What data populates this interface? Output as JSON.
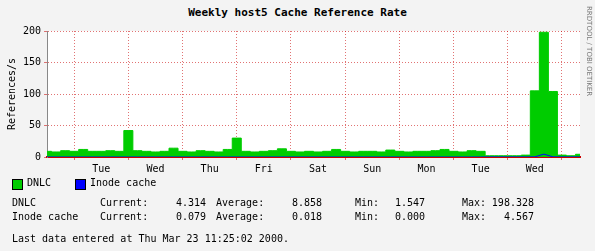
{
  "chart_data": {
    "type": "area",
    "title": "Weekly host5 Cache Reference Rate",
    "y_label": "References/s",
    "categories": [
      null,
      null,
      null,
      null,
      null,
      null,
      "Tue",
      null,
      null,
      null,
      null,
      null,
      "Wed",
      null,
      null,
      null,
      null,
      null,
      "Thu",
      null,
      null,
      null,
      null,
      null,
      "Fri",
      null,
      null,
      null,
      null,
      null,
      "Sat",
      null,
      null,
      null,
      null,
      null,
      "Sun",
      null,
      null,
      null,
      null,
      null,
      "Mon",
      null,
      null,
      null,
      null,
      null,
      "Tue",
      null,
      null,
      null,
      null,
      null,
      "Wed",
      null,
      null,
      null,
      null,
      null
    ],
    "series": [
      {
        "name": "DNLC",
        "color": "#00cc00",
        "type": "area",
        "values": [
          9,
          8,
          10,
          9,
          12,
          9,
          9,
          10,
          9,
          42,
          10,
          9,
          8,
          9,
          14,
          9,
          8,
          10,
          9,
          8,
          12,
          30,
          9,
          8,
          9,
          10,
          13,
          9,
          8,
          9,
          8,
          9,
          12,
          9,
          8,
          9,
          9,
          8,
          11,
          9,
          8,
          9,
          9,
          10,
          12,
          9,
          8,
          10,
          9,
          2,
          2,
          2,
          2,
          3,
          105,
          198,
          104,
          3,
          2,
          4.3
        ]
      },
      {
        "name": "Inode cache",
        "color": "#0000ff",
        "type": "line",
        "values": [
          0,
          0,
          0,
          0,
          0,
          0,
          0,
          0,
          0,
          0,
          0,
          0,
          0,
          0,
          0,
          0,
          0,
          0,
          0,
          0,
          0,
          0,
          0,
          0,
          0,
          0,
          0,
          0,
          0,
          0,
          0,
          0,
          0,
          0,
          0,
          0,
          0,
          0,
          0,
          0,
          0,
          0,
          0,
          0,
          0,
          0,
          0,
          0,
          0,
          0.1,
          0.1,
          0.1,
          0.1,
          0.1,
          0.2,
          4.567,
          0.2,
          0.1,
          0.1,
          0.1
        ]
      }
    ],
    "ylim": [
      0,
      200
    ],
    "yticks": [
      0,
      50,
      100,
      150,
      200
    ],
    "grid": true,
    "stats": {
      "columns": [
        "Current:",
        "Average:",
        "Min:",
        "Max:"
      ],
      "rows": [
        {
          "name": "DNLC",
          "values": [
            "4.314",
            "8.858",
            "1.547",
            "198.328"
          ]
        },
        {
          "name": "Inode cache",
          "values": [
            "0.079",
            "0.018",
            "0.000",
            "4.567"
          ]
        }
      ]
    },
    "footer": "Last data entered at Thu Mar 23 11:25:02 2000.",
    "watermark": "RRDTOOL / TOBI OETIKER"
  }
}
